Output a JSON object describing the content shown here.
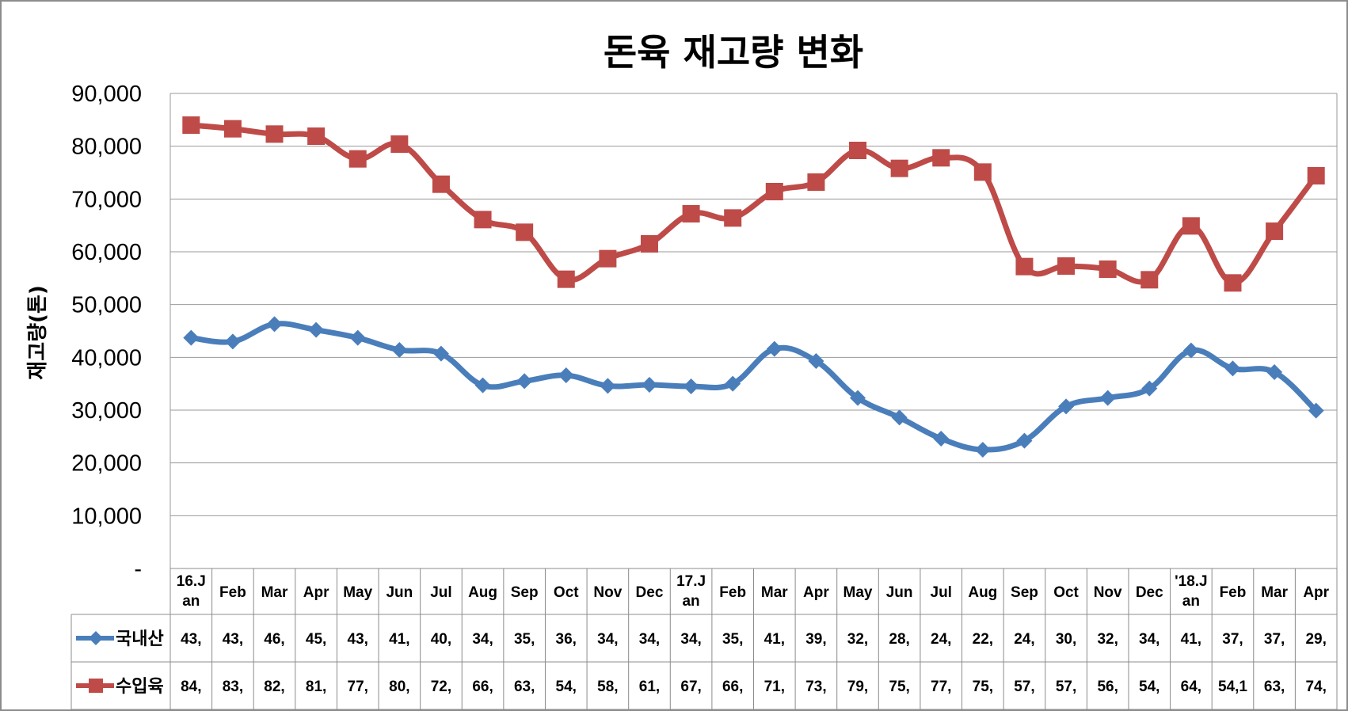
{
  "chart_data": {
    "type": "line",
    "title": "돈육 재고량 변화",
    "ylabel": "재고량(톤)",
    "ylim": [
      0,
      90000
    ],
    "ytick_labels": [
      "-",
      "10,000",
      "20,000",
      "30,000",
      "40,000",
      "50,000",
      "60,000",
      "70,000",
      "80,000",
      "90,000"
    ],
    "grid": true,
    "legend": "data-table-left",
    "categories": [
      "16.Jan",
      "Feb",
      "Mar",
      "Apr",
      "May",
      "Jun",
      "Jul",
      "Aug",
      "Sep",
      "Oct",
      "Nov",
      "Dec",
      "17.Jan",
      "Feb",
      "Mar",
      "Apr",
      "May",
      "Jun",
      "Jul",
      "Aug",
      "Sep",
      "Oct",
      "Nov",
      "Dec",
      "'18.Jan",
      "Feb",
      "Mar",
      "Apr"
    ],
    "category_lines": [
      [
        "16.J",
        "an"
      ],
      [
        "Feb"
      ],
      [
        "Mar"
      ],
      [
        "Apr"
      ],
      [
        "May"
      ],
      [
        "Jun"
      ],
      [
        "Jul"
      ],
      [
        "Aug"
      ],
      [
        "Sep"
      ],
      [
        "Oct"
      ],
      [
        "Nov"
      ],
      [
        "Dec"
      ],
      [
        "17.J",
        "an"
      ],
      [
        "Feb"
      ],
      [
        "Mar"
      ],
      [
        "Apr"
      ],
      [
        "May"
      ],
      [
        "Jun"
      ],
      [
        "Jul"
      ],
      [
        "Aug"
      ],
      [
        "Sep"
      ],
      [
        "Oct"
      ],
      [
        "Nov"
      ],
      [
        "Dec"
      ],
      [
        "'18.J",
        "an"
      ],
      [
        "Feb"
      ],
      [
        "Mar"
      ],
      [
        "Apr"
      ]
    ],
    "series": [
      {
        "name": "국내산",
        "color": "#4a7ebb",
        "marker": "diamond",
        "values": [
          43700,
          43000,
          46300,
          45200,
          43700,
          41400,
          40700,
          34700,
          35500,
          36600,
          34600,
          34800,
          34500,
          35000,
          41600,
          39300,
          32300,
          28600,
          24600,
          22500,
          24200,
          30700,
          32300,
          34100,
          41300,
          37900,
          37200,
          29900
        ],
        "table_cells": [
          "43,",
          "43,",
          "46,",
          "45,",
          "43,",
          "41,",
          "40,",
          "34,",
          "35,",
          "36,",
          "34,",
          "34,",
          "34,",
          "35,",
          "41,",
          "39,",
          "32,",
          "28,",
          "24,",
          "22,",
          "24,",
          "30,",
          "32,",
          "34,",
          "41,",
          "37,",
          "37,",
          "29,"
        ]
      },
      {
        "name": "수입육",
        "color": "#be4b48",
        "marker": "square",
        "values": [
          84000,
          83300,
          82300,
          81900,
          77600,
          80400,
          72800,
          66100,
          63700,
          54800,
          58700,
          61500,
          67200,
          66400,
          71400,
          73200,
          79200,
          75800,
          77800,
          75100,
          57200,
          57300,
          56700,
          54700,
          64900,
          54100,
          63900,
          74400
        ],
        "table_cells": [
          "84,",
          "83,",
          "82,",
          "81,",
          "77,",
          "80,",
          "72,",
          "66,",
          "63,",
          "54,",
          "58,",
          "61,",
          "67,",
          "66,",
          "71,",
          "73,",
          "79,",
          "75,",
          "77,",
          "75,",
          "57,",
          "57,",
          "56,",
          "54,",
          "64,",
          "54,1",
          "63,",
          "74,"
        ]
      }
    ]
  }
}
